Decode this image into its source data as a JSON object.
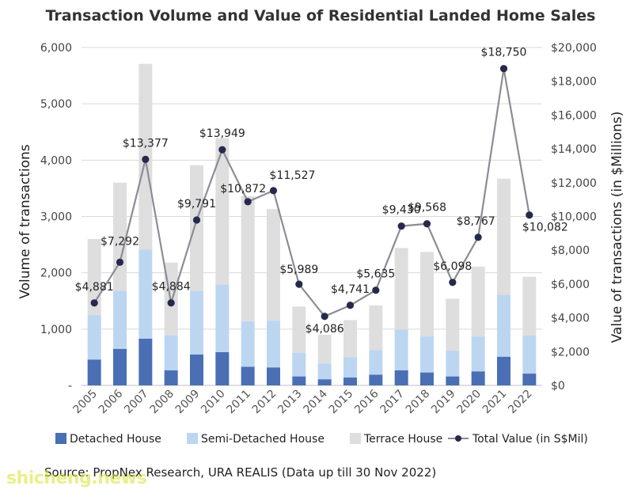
{
  "chart_data": {
    "type": "bar",
    "subtype": "stacked-bar-with-line",
    "title": "Transaction Volume and Value of Residential Landed Home Sales",
    "ylabel": "Volume of transactions",
    "y2label": "Value of transactions (in $Millions)",
    "ylim": [
      0,
      6000
    ],
    "y2lim": [
      0,
      20000
    ],
    "yticks": [
      "-",
      "1,000",
      "2,000",
      "3,000",
      "4,000",
      "5,000",
      "6,000"
    ],
    "y2ticks": [
      "$0",
      "$2,000",
      "$4,000",
      "$6,000",
      "$8,000",
      "$10,000",
      "$12,000",
      "$14,000",
      "$16,000",
      "$18,000",
      "$20,000"
    ],
    "grid": true,
    "legend_position": "bottom",
    "categories": [
      "2005",
      "2006",
      "2007",
      "2008",
      "2009",
      "2010",
      "2011",
      "2012",
      "2013",
      "2014",
      "2015",
      "2016",
      "2017",
      "2018",
      "2019",
      "2020",
      "2021",
      "2022"
    ],
    "series": [
      {
        "name": "Detached House",
        "type": "bar",
        "color": "#4a6fb5",
        "values": [
          460,
          650,
          830,
          270,
          550,
          590,
          330,
          320,
          160,
          110,
          140,
          190,
          270,
          230,
          160,
          250,
          510,
          210
        ]
      },
      {
        "name": "Semi-Detached House",
        "type": "bar",
        "color": "#bcd6f2",
        "values": [
          790,
          1030,
          1580,
          620,
          1130,
          1200,
          810,
          830,
          420,
          280,
          360,
          440,
          720,
          640,
          460,
          620,
          1100,
          680
        ]
      },
      {
        "name": "Terrace House",
        "type": "bar",
        "color": "#dedede",
        "values": [
          1350,
          1920,
          3300,
          1290,
          2230,
          2600,
          2220,
          1980,
          820,
          510,
          660,
          790,
          1450,
          1500,
          920,
          1240,
          2060,
          1040
        ]
      },
      {
        "name": "Total Value (in S$Mil)",
        "type": "line",
        "axis": "right",
        "color": "#8c8c96",
        "marker_color": "#262a4a",
        "values": [
          4881,
          7292,
          13377,
          4884,
          9791,
          13949,
          10872,
          11527,
          5989,
          4086,
          4741,
          5635,
          9430,
          9568,
          6098,
          8767,
          18750,
          10082
        ],
        "labels": [
          "$4,881",
          "$7,292",
          "$13,377",
          "$4,884",
          "$9,791",
          "$13,949",
          "$10,872",
          "$11,527",
          "$5,989",
          "$4,086",
          "$4,741",
          "$5,635",
          "$9,430",
          "$9,568",
          "$6,098",
          "$8,767",
          "$18,750",
          "$10,082"
        ]
      }
    ]
  },
  "source_note": "Source: PropNex Research, URA REALIS (Data up till 30 Nov 2022)",
  "watermark": "shicheng.news"
}
